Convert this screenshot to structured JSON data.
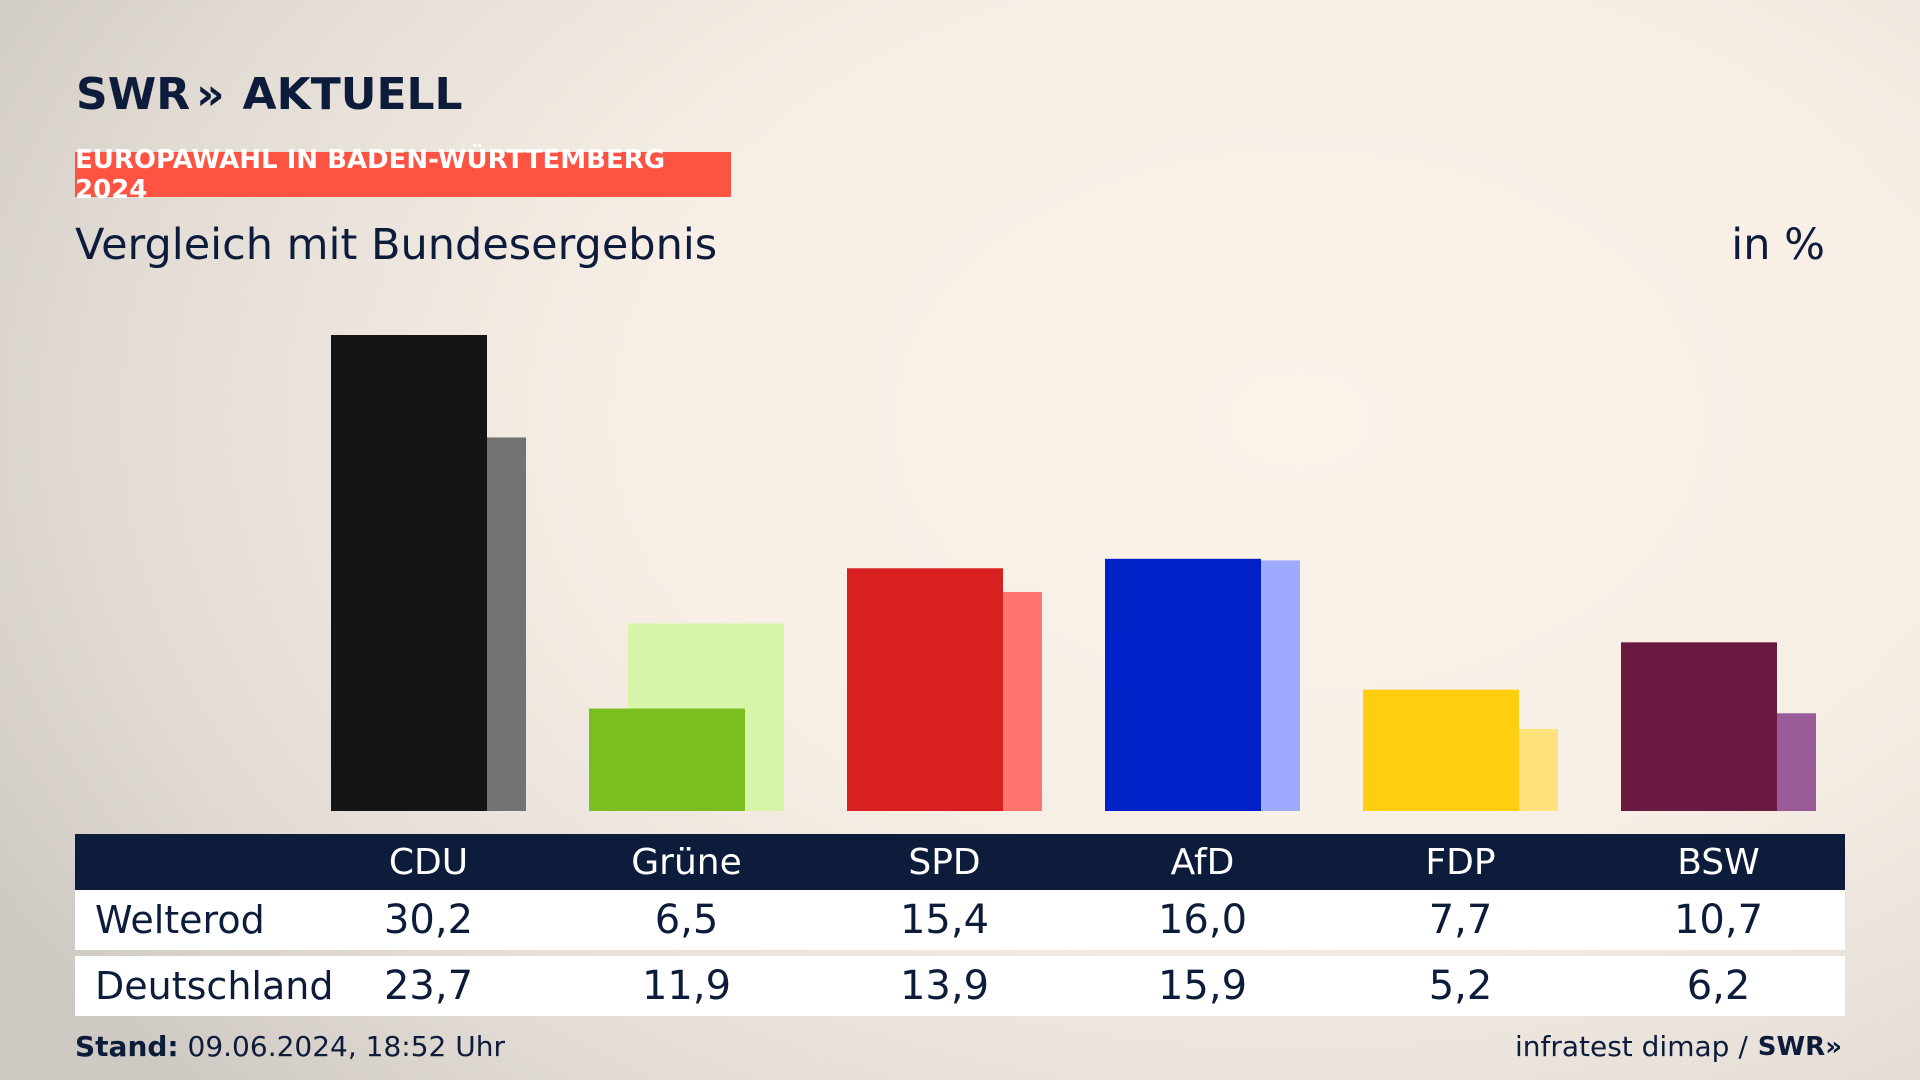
{
  "brand": {
    "name": "SWR",
    "chevrons": "»",
    "section": "AKTUELL"
  },
  "tag": "EUROPAWAHL IN BADEN-WÜRTTEMBERG 2024",
  "subtitle": "Vergleich mit Bundesergebnis",
  "unit": "in %",
  "table": {
    "row_labels": [
      "Welterod",
      "Deutschland"
    ]
  },
  "footer": {
    "stand_label": "Stand:",
    "stand_value": "09.06.2024, 18:52 Uhr",
    "source": "infratest dimap /",
    "source_logo": "SWR»"
  },
  "chart_data": {
    "type": "bar",
    "categories": [
      "CDU",
      "Grüne",
      "SPD",
      "AfD",
      "FDP",
      "BSW"
    ],
    "series": [
      {
        "name": "Welterod",
        "values": [
          30.2,
          6.5,
          15.4,
          16.0,
          7.7,
          10.7
        ]
      },
      {
        "name": "Deutschland",
        "values": [
          23.7,
          11.9,
          13.9,
          15.9,
          5.2,
          6.2
        ]
      }
    ],
    "colors_primary": [
      "#151515",
      "#7abf1f",
      "#d82020",
      "#0020c8",
      "#ffcf0f",
      "#6a1940"
    ],
    "colors_secondary": [
      "#727272",
      "#d6f5a8",
      "#ff746c",
      "#9eaaff",
      "#ffe27a",
      "#9a5c98"
    ],
    "ylim": [
      0,
      30.2
    ],
    "grid": false,
    "legend": "table-below"
  }
}
